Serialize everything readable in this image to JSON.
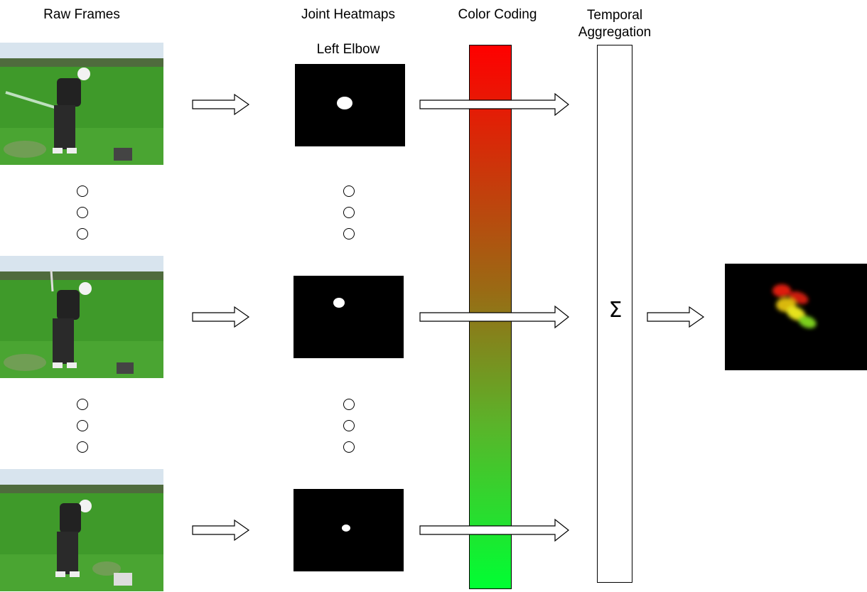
{
  "headers": {
    "raw_frames": "Raw Frames",
    "joint_heatmaps": "Joint Heatmaps",
    "color_coding": "Color Coding",
    "temporal_aggregation": "Temporal Aggregation",
    "joint_name": "Left Elbow"
  },
  "aggregation_symbol": "Σ",
  "colors": {
    "gradient_top": "#ff0000",
    "gradient_bottom": "#00ff33",
    "grass": "#3f9a2a",
    "heatmap_bg": "#000000",
    "blob": "#ffffff"
  },
  "icons": [
    "right-arrow-icon",
    "ellipsis-dot-icon",
    "sigma-icon"
  ]
}
